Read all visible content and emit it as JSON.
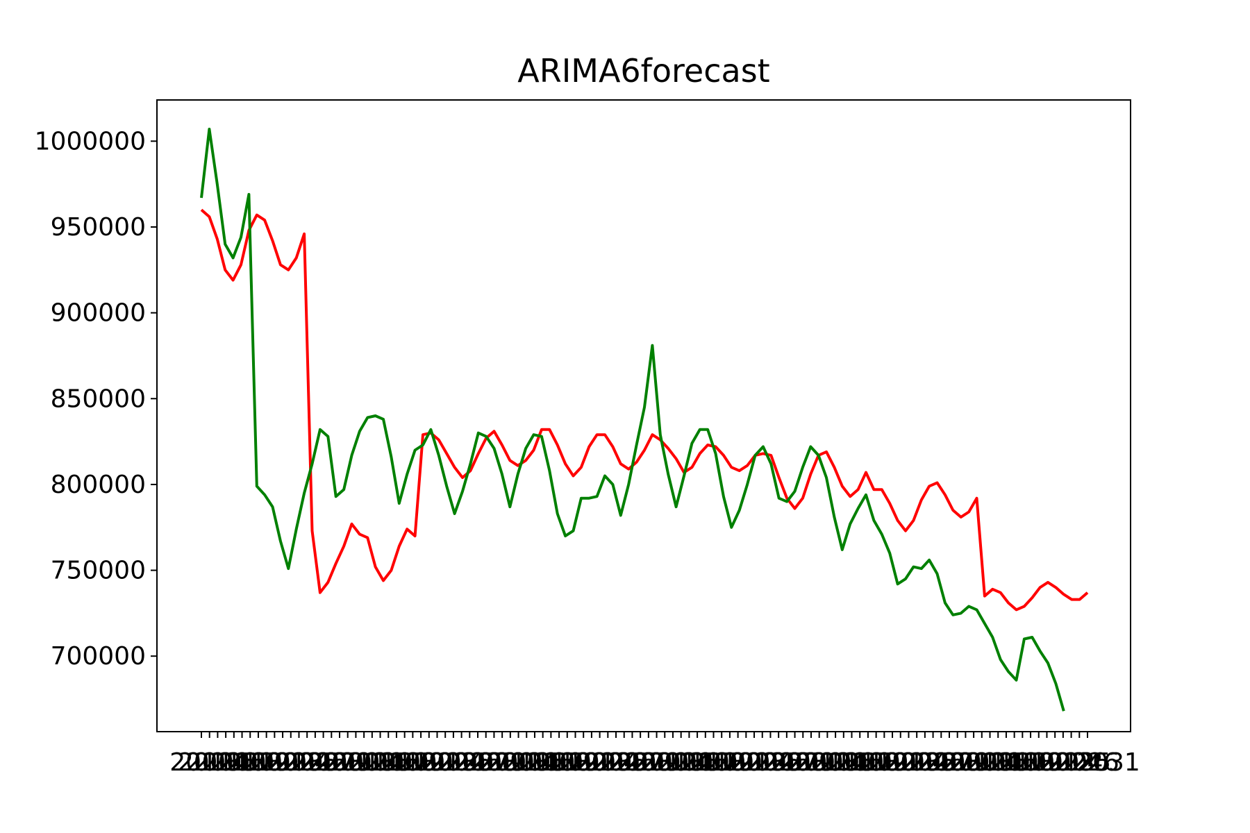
{
  "chart_data": {
    "type": "line",
    "title": "ARIMA6forecast",
    "xlabel": "",
    "ylabel": "",
    "ylim": [
      656000,
      1024000
    ],
    "yticks": [
      700000,
      750000,
      800000,
      850000,
      900000,
      950000,
      1000000
    ],
    "ytick_labels": [
      "700000",
      "750000",
      "800000",
      "850000",
      "900000",
      "950000",
      "1000000"
    ],
    "grid": false,
    "legend": "none",
    "x_tick_count": 110,
    "x_tick_labels_note": "overlapping date labels starting with \"20\" and ending with \"31\"",
    "last_xtick_label": "2031",
    "series": [
      {
        "color": "#ff0000",
        "values": [
          960000,
          956000,
          943000,
          925000,
          919000,
          928000,
          948000,
          957000,
          954000,
          942000,
          928000,
          925000,
          932000,
          946000,
          773000,
          737000,
          743000,
          754000,
          764000,
          777000,
          771000,
          769000,
          752000,
          744000,
          750000,
          764000,
          774000,
          770000,
          829000,
          830000,
          826000,
          818000,
          810000,
          804000,
          808000,
          818000,
          827000,
          831000,
          823000,
          814000,
          811000,
          814000,
          820000,
          832000,
          832000,
          823000,
          812000,
          805000,
          810000,
          822000,
          829000,
          829000,
          822000,
          812000,
          809000,
          813000,
          820000,
          829000,
          826000,
          821000,
          815000,
          807000,
          810000,
          818000,
          823000,
          822000,
          817000,
          810000,
          808000,
          811000,
          817000,
          818000,
          817000,
          804000,
          792000,
          786000,
          792000,
          806000,
          817000,
          819000,
          810000,
          799000,
          793000,
          797000,
          807000,
          797000,
          797000,
          789000,
          779000,
          773000,
          779000,
          791000,
          799000,
          801000,
          794000,
          785000,
          781000,
          784000,
          792000,
          735000,
          739000,
          737000,
          731000,
          727000,
          729000,
          734000,
          740000,
          743000,
          740000,
          736000,
          733000,
          733000,
          737000
        ]
      },
      {
        "color": "#008000",
        "values": [
          967000,
          1007000,
          975000,
          940000,
          932000,
          944000,
          969000,
          799000,
          794000,
          787000,
          767000,
          751000,
          774000,
          795000,
          812000,
          832000,
          828000,
          793000,
          797000,
          817000,
          831000,
          839000,
          840000,
          838000,
          816000,
          789000,
          806000,
          820000,
          823000,
          832000,
          817000,
          799000,
          783000,
          796000,
          812000,
          830000,
          828000,
          821000,
          806000,
          787000,
          806000,
          821000,
          829000,
          828000,
          808000,
          783000,
          770000,
          773000,
          792000,
          792000,
          793000,
          805000,
          800000,
          782000,
          800000,
          823000,
          845000,
          881000,
          829000,
          806000,
          787000,
          805000,
          824000,
          832000,
          832000,
          818000,
          793000,
          775000,
          785000,
          800000,
          817000,
          822000,
          812000,
          792000,
          790000,
          796000,
          810000,
          822000,
          817000,
          804000,
          781000,
          762000,
          777000,
          786000,
          794000,
          779000,
          771000,
          760000,
          742000,
          745000,
          752000,
          751000,
          756000,
          748000,
          731000,
          724000,
          725000,
          729000,
          727000,
          719000,
          711000,
          698000,
          691000,
          686000,
          710000,
          711000,
          703000,
          696000,
          684000,
          668000
        ]
      }
    ]
  }
}
